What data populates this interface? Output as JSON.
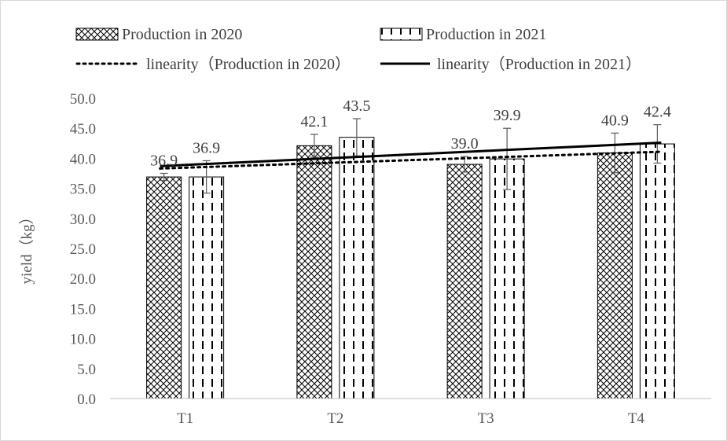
{
  "chart_data": {
    "type": "bar",
    "title": "",
    "xlabel": "",
    "ylabel": "yield（kg）",
    "ylim": [
      0,
      50
    ],
    "yticks": [
      "0.0",
      "5.0",
      "10.0",
      "15.0",
      "20.0",
      "25.0",
      "30.0",
      "35.0",
      "40.0",
      "45.0",
      "50.0"
    ],
    "categories": [
      "T1",
      "T2",
      "T3",
      "T4"
    ],
    "grid": false,
    "legend_position": "top",
    "series": [
      {
        "name": "Production in 2020",
        "pattern": "crosshatch",
        "values": [
          36.9,
          42.1,
          39.0,
          40.9
        ],
        "labels": [
          "36.9",
          "42.1",
          "39.0",
          "40.9"
        ],
        "errors": [
          0.6,
          1.9,
          1.3,
          3.3
        ]
      },
      {
        "name": "Production in 2021",
        "pattern": "dashed-vertical",
        "values": [
          36.9,
          43.5,
          39.9,
          42.4
        ],
        "labels": [
          "36.9",
          "43.5",
          "39.9",
          "42.4"
        ],
        "errors": [
          2.7,
          3.1,
          5.1,
          3.2
        ]
      }
    ],
    "trendlines": [
      {
        "name": "linearity（Production in 2020）",
        "style": "dotted",
        "start": 38.3,
        "end": 41.1
      },
      {
        "name": "linearity（Production in 2021）",
        "style": "solid",
        "start": 38.7,
        "end": 42.6
      }
    ],
    "colors": {
      "bar_fill": "#ffffff",
      "pattern": "#000000",
      "axis": "#bfbfbf",
      "text": "#595959"
    }
  }
}
